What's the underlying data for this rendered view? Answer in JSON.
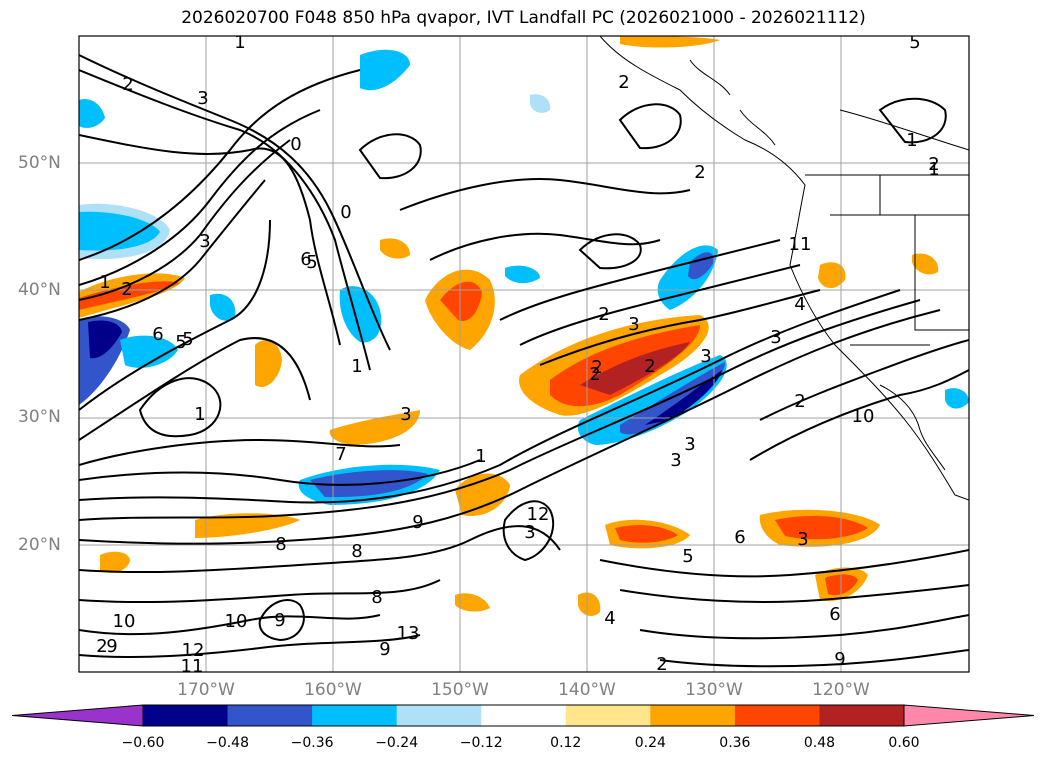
{
  "title": "2026020700 F048 850 hPa qvapor, IVT Landfall PC (2026021000 - 2026021112)",
  "map": {
    "region": "North-east Pacific Ocean and western North America",
    "lat_labels": [
      "50°N",
      "40°N",
      "30°N",
      "20°N"
    ],
    "lon_labels": [
      "170°W",
      "160°W",
      "150°W",
      "140°W",
      "130°W",
      "120°W"
    ],
    "gridlines": true,
    "coastlines": true
  },
  "colorbar": {
    "extend": "both",
    "tick_labels": [
      "−0.60",
      "−0.48",
      "−0.36",
      "−0.24",
      "−0.12",
      "0.12",
      "0.24",
      "0.36",
      "0.48",
      "0.60"
    ],
    "colors": [
      "#9933cc",
      "#00008b",
      "#3355cc",
      "#00bfff",
      "#aee0f8",
      "#ffffff",
      "#ffe68a",
      "#ffa500",
      "#ff4500",
      "#b22222",
      "#ff88aa"
    ]
  },
  "contour_labels": [
    "1",
    "2",
    "3",
    "1",
    "2",
    "0",
    "0",
    "6",
    "3",
    "5",
    "1",
    "2",
    "3",
    "5",
    "1",
    "1",
    "2",
    "2",
    "3",
    "4",
    "5",
    "3",
    "3",
    "6",
    "5",
    "2",
    "2",
    "3",
    "2",
    "1",
    "1",
    "7",
    "8",
    "8",
    "9",
    "10",
    "9",
    "8",
    "10",
    "9",
    "9",
    "12",
    "13",
    "11",
    "12",
    "2",
    "3",
    "4",
    "5",
    "6",
    "3",
    "2",
    "6",
    "9",
    "10",
    "11",
    "2",
    "3",
    "2"
  ]
}
